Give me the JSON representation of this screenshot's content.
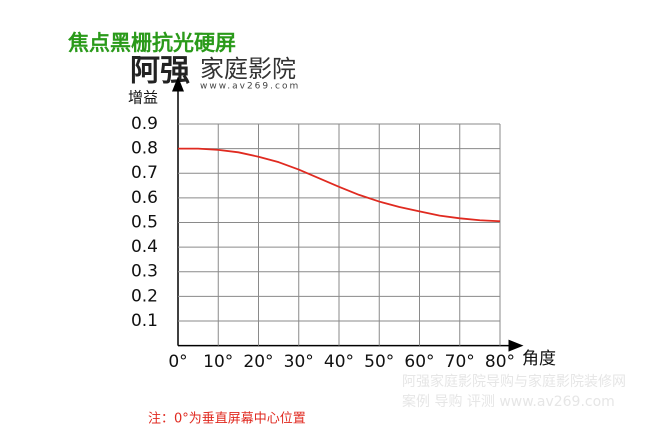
{
  "chart_data": {
    "type": "line",
    "title": "焦点黑栅抗光硬屏",
    "logo": {
      "name_a": "阿强",
      "name_b": "家庭影院",
      "url": "www.av269.com"
    },
    "watermark": [
      "阿强家庭影院导购与家庭影院装修网",
      "案例 导购 评测 www.av269.com"
    ],
    "ylabel": "增益",
    "xlabel": "角度",
    "note": "注：0°为垂直屏幕中心位置",
    "x": [
      0,
      5,
      10,
      15,
      20,
      25,
      30,
      35,
      40,
      45,
      50,
      55,
      60,
      65,
      70,
      75,
      80
    ],
    "series": [
      {
        "color": "#e02a20",
        "values": [
          0.8,
          0.8,
          0.795,
          0.785,
          0.767,
          0.745,
          0.715,
          0.68,
          0.645,
          0.612,
          0.585,
          0.563,
          0.545,
          0.528,
          0.517,
          0.509,
          0.505
        ]
      }
    ],
    "xlim": [
      0,
      80
    ],
    "xticks": [
      {
        "value": 0,
        "label": "0°"
      },
      {
        "value": 10,
        "label": "10°"
      },
      {
        "value": 20,
        "label": "20°"
      },
      {
        "value": 30,
        "label": "30°"
      },
      {
        "value": 40,
        "label": "40°"
      },
      {
        "value": 50,
        "label": "50°"
      },
      {
        "value": 60,
        "label": "60°"
      },
      {
        "value": 70,
        "label": "70°"
      },
      {
        "value": 80,
        "label": "80°"
      }
    ],
    "ylim": [
      0,
      0.9
    ],
    "yticks": [
      0.1,
      0.2,
      0.3,
      0.4,
      0.5,
      0.6,
      0.7,
      0.8,
      0.9
    ],
    "grid": true
  }
}
